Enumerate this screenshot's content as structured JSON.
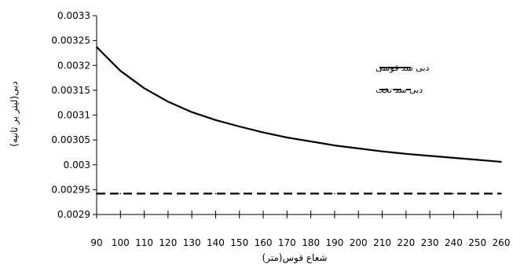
{
  "chart_data": {
    "type": "line",
    "title": "",
    "xlabel": "شعاع قوس(متر)",
    "ylabel": "دبی(لیتر بر ثانیه)",
    "x": [
      90,
      100,
      110,
      120,
      130,
      140,
      150,
      160,
      170,
      180,
      190,
      200,
      210,
      220,
      230,
      240,
      250,
      260
    ],
    "x_tick_labels": [
      "90",
      "100",
      "110",
      "120",
      "130",
      "140",
      "150",
      "160",
      "170",
      "180",
      "190",
      "200",
      "210",
      "220",
      "230",
      "240",
      "250",
      "260"
    ],
    "ylim": [
      0.0029,
      0.0033
    ],
    "y_ticks": [
      0.0029,
      0.00295,
      0.003,
      0.00305,
      0.0031,
      0.00315,
      0.0032,
      0.00325,
      0.0033
    ],
    "y_tick_labels": [
      "0.0029",
      "0.00295",
      "0.003",
      "0.00305",
      "0.0031",
      "0.00315",
      "0.0032",
      "0.00325",
      "0.0033"
    ],
    "grid": false,
    "legend_position": "top-right",
    "series": [
      {
        "name": "دبی سد قوسی",
        "style": "solid",
        "color": "#000000",
        "values": [
          0.003237,
          0.003189,
          0.003154,
          0.003127,
          0.003106,
          0.00309,
          0.003077,
          0.003065,
          0.003055,
          0.003047,
          0.003039,
          0.003033,
          0.003027,
          0.003022,
          0.003018,
          0.003014,
          0.00301,
          0.003006
        ]
      },
      {
        "name": "دبی سد تخت",
        "style": "dashed",
        "color": "#000000",
        "values": [
          0.002942,
          0.002942,
          0.002942,
          0.002942,
          0.002942,
          0.002942,
          0.002942,
          0.002942,
          0.002942,
          0.002942,
          0.002942,
          0.002942,
          0.002942,
          0.002942,
          0.002942,
          0.002942,
          0.002942,
          0.002942
        ]
      }
    ]
  }
}
